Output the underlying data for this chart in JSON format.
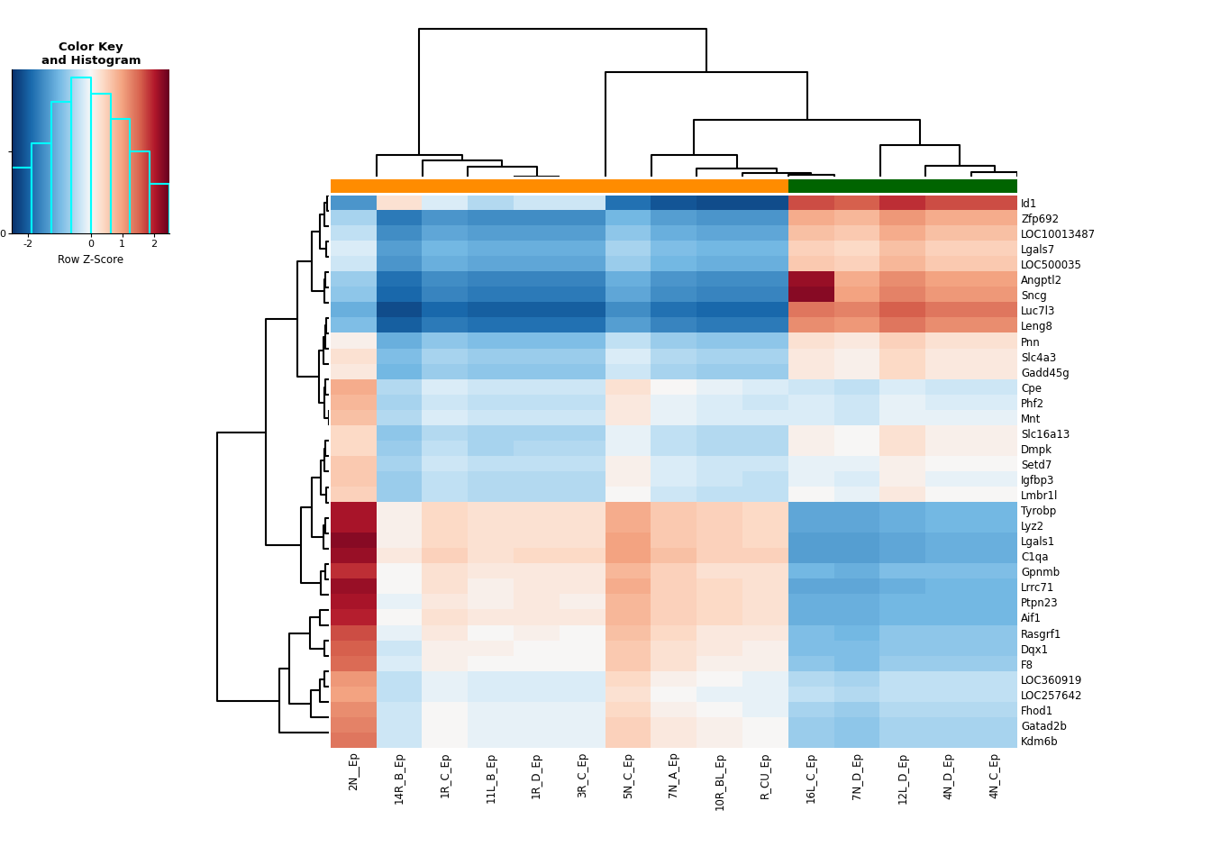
{
  "col_labels_ordered": [
    "2N__Ep",
    "5N_C_Ep",
    "7N_A_Ep",
    "10R_BL_Ep",
    "R_CU_Ep",
    "14R_B_Ep",
    "11L_B_Ep",
    "1R_C_Ep",
    "1R_D_Ep",
    "3R_C_Ep",
    "12L_D_Ep",
    "16L_C_Ep",
    "4N_D_Ep",
    "7N_D_Ep",
    "4N_C_Ep"
  ],
  "row_labels_ordered": [
    "Ptpn23",
    "Dqx1",
    "Lrrc71",
    "Gatad2b",
    "Rasgrf1",
    "Lgals1",
    "Cpe",
    "Igfbp3",
    "C1qa",
    "Tyrobp",
    "Aif1",
    "Gpnmb",
    "Phf2",
    "Mnt",
    "F8",
    "Slc16a13",
    "LOC360919",
    "LOC257642",
    "Kdm6b",
    "Lmbr1l",
    "Fhod1",
    "Setd7",
    "Slc4a3",
    "Dmpk",
    "Lyz2",
    "LOC10013487",
    "Angptl2",
    "Sncg",
    "Pnn",
    "Luc7l3",
    "Leng8",
    "Zfp692",
    "Id1",
    "Lgals7",
    "Gadd45g",
    "LOC500035"
  ],
  "col_group_colors": [
    "#FF8C00",
    "#FF8C00",
    "#FF8C00",
    "#FF8C00",
    "#FF8C00",
    "#FF8C00",
    "#FF8C00",
    "#FF8C00",
    "#FF8C00",
    "#FF8C00",
    "#006400",
    "#006400",
    "#006400",
    "#006400",
    "#006400"
  ],
  "vmin": -2.5,
  "vmax": 2.5,
  "heatmap_data": [
    [
      2.1,
      0.8,
      0.5,
      0.4,
      0.3,
      -0.1,
      0.1,
      0.2,
      0.2,
      0.1,
      -1.0,
      -1.1,
      -1.0,
      -1.1,
      -1.0
    ],
    [
      1.6,
      0.6,
      0.3,
      0.2,
      0.1,
      -0.3,
      0.1,
      0.1,
      0.0,
      0.0,
      -0.8,
      -0.9,
      -0.8,
      -0.9,
      -0.8
    ],
    [
      2.2,
      0.9,
      0.5,
      0.4,
      0.3,
      0.0,
      0.1,
      0.3,
      0.2,
      0.2,
      -1.1,
      -1.2,
      -1.0,
      -1.2,
      -1.0
    ],
    [
      1.3,
      0.5,
      0.2,
      0.1,
      0.0,
      -0.3,
      -0.1,
      0.0,
      -0.1,
      -0.1,
      -0.6,
      -0.7,
      -0.6,
      -0.8,
      -0.6
    ],
    [
      1.7,
      0.7,
      0.4,
      0.2,
      0.2,
      -0.1,
      0.0,
      0.2,
      0.1,
      0.0,
      -0.8,
      -0.9,
      -0.8,
      -1.0,
      -0.8
    ],
    [
      2.3,
      1.0,
      0.6,
      0.5,
      0.4,
      0.1,
      0.3,
      0.4,
      0.3,
      0.3,
      -1.2,
      -1.3,
      -1.1,
      -1.3,
      -1.1
    ],
    [
      0.9,
      0.3,
      0.0,
      -0.1,
      -0.2,
      -0.5,
      -0.3,
      -0.2,
      -0.3,
      -0.3,
      -0.2,
      -0.3,
      -0.3,
      -0.4,
      -0.3
    ],
    [
      0.6,
      0.1,
      -0.2,
      -0.3,
      -0.4,
      -0.7,
      -0.5,
      -0.4,
      -0.5,
      -0.5,
      0.1,
      -0.1,
      -0.1,
      -0.2,
      -0.1
    ],
    [
      2.2,
      1.0,
      0.7,
      0.5,
      0.5,
      0.2,
      0.3,
      0.5,
      0.4,
      0.4,
      -1.2,
      -1.3,
      -1.1,
      -1.3,
      -1.1
    ],
    [
      2.1,
      0.9,
      0.6,
      0.5,
      0.4,
      0.1,
      0.3,
      0.4,
      0.3,
      0.3,
      -1.1,
      -1.2,
      -1.0,
      -1.2,
      -1.0
    ],
    [
      2.0,
      0.8,
      0.5,
      0.4,
      0.3,
      0.0,
      0.2,
      0.3,
      0.2,
      0.2,
      -1.0,
      -1.1,
      -1.0,
      -1.1,
      -1.0
    ],
    [
      1.9,
      0.8,
      0.5,
      0.3,
      0.3,
      0.0,
      0.2,
      0.3,
      0.2,
      0.2,
      -0.9,
      -1.0,
      -0.9,
      -1.1,
      -0.9
    ],
    [
      0.8,
      0.2,
      -0.1,
      -0.2,
      -0.3,
      -0.6,
      -0.4,
      -0.3,
      -0.4,
      -0.4,
      -0.1,
      -0.2,
      -0.2,
      -0.3,
      -0.2
    ],
    [
      0.7,
      0.2,
      -0.1,
      -0.2,
      -0.2,
      -0.5,
      -0.3,
      -0.2,
      -0.3,
      -0.3,
      -0.1,
      -0.2,
      -0.1,
      -0.3,
      -0.1
    ],
    [
      1.5,
      0.6,
      0.3,
      0.1,
      0.1,
      -0.2,
      0.0,
      0.1,
      0.0,
      0.0,
      -0.7,
      -0.8,
      -0.7,
      -0.9,
      -0.7
    ],
    [
      0.4,
      -0.1,
      -0.4,
      -0.5,
      -0.5,
      -0.8,
      -0.6,
      -0.5,
      -0.6,
      -0.6,
      0.3,
      0.1,
      0.1,
      0.0,
      0.1
    ],
    [
      1.1,
      0.4,
      0.1,
      0.0,
      -0.1,
      -0.4,
      -0.2,
      -0.1,
      -0.2,
      -0.2,
      -0.4,
      -0.5,
      -0.4,
      -0.6,
      -0.4
    ],
    [
      1.0,
      0.3,
      0.0,
      -0.1,
      -0.1,
      -0.4,
      -0.2,
      -0.1,
      -0.2,
      -0.2,
      -0.4,
      -0.4,
      -0.4,
      -0.5,
      -0.4
    ],
    [
      1.4,
      0.5,
      0.2,
      0.1,
      0.0,
      -0.3,
      -0.1,
      0.0,
      -0.1,
      -0.1,
      -0.6,
      -0.7,
      -0.6,
      -0.8,
      -0.6
    ],
    [
      0.5,
      0.0,
      -0.3,
      -0.4,
      -0.4,
      -0.7,
      -0.5,
      -0.4,
      -0.5,
      -0.5,
      0.2,
      0.0,
      0.0,
      -0.1,
      0.0
    ],
    [
      1.2,
      0.4,
      0.1,
      0.0,
      -0.1,
      -0.3,
      -0.1,
      0.0,
      -0.1,
      -0.1,
      -0.5,
      -0.6,
      -0.5,
      -0.7,
      -0.5
    ],
    [
      0.6,
      0.1,
      -0.2,
      -0.3,
      -0.3,
      -0.6,
      -0.4,
      -0.3,
      -0.4,
      -0.4,
      0.1,
      -0.1,
      0.0,
      -0.1,
      0.0
    ],
    [
      0.3,
      -0.2,
      -0.5,
      -0.6,
      -0.6,
      -0.9,
      -0.7,
      -0.6,
      -0.7,
      -0.7,
      0.4,
      0.2,
      0.2,
      0.1,
      0.2
    ],
    [
      0.4,
      -0.1,
      -0.4,
      -0.5,
      -0.5,
      -0.7,
      -0.6,
      -0.4,
      -0.5,
      -0.5,
      0.3,
      0.1,
      0.1,
      0.0,
      0.1
    ],
    [
      2.1,
      0.9,
      0.6,
      0.5,
      0.4,
      0.1,
      0.3,
      0.4,
      0.3,
      0.3,
      -1.1,
      -1.2,
      -1.0,
      -1.2,
      -1.0
    ],
    [
      -0.4,
      -0.8,
      -1.1,
      -1.2,
      -1.2,
      -1.5,
      -1.3,
      -1.2,
      -1.3,
      -1.3,
      0.9,
      0.7,
      0.7,
      0.6,
      0.7
    ],
    [
      -0.7,
      -1.1,
      -1.4,
      -1.5,
      -1.5,
      -1.8,
      -1.6,
      -1.5,
      -1.6,
      -1.6,
      1.2,
      2.2,
      1.0,
      0.9,
      1.0
    ],
    [
      -0.8,
      -1.2,
      -1.5,
      -1.6,
      -1.6,
      -1.9,
      -1.7,
      -1.6,
      -1.7,
      -1.7,
      1.3,
      2.3,
      1.1,
      1.0,
      1.1
    ],
    [
      0.1,
      -0.4,
      -0.7,
      -0.8,
      -0.8,
      -1.1,
      -0.9,
      -0.8,
      -0.9,
      -0.9,
      0.5,
      0.3,
      0.3,
      0.2,
      0.3
    ],
    [
      -1.1,
      -1.5,
      -1.8,
      -1.9,
      -1.9,
      -2.2,
      -2.0,
      -1.9,
      -2.0,
      -2.0,
      1.6,
      1.4,
      1.4,
      1.3,
      1.4
    ],
    [
      -0.9,
      -1.3,
      -1.6,
      -1.7,
      -1.7,
      -2.0,
      -1.8,
      -1.7,
      -1.8,
      -1.8,
      1.4,
      1.2,
      1.2,
      1.1,
      1.2
    ],
    [
      -0.6,
      -1.0,
      -1.3,
      -1.4,
      -1.4,
      -1.7,
      -1.5,
      -1.4,
      -1.5,
      -1.5,
      1.1,
      0.9,
      0.9,
      0.8,
      0.9
    ],
    [
      -1.4,
      -1.8,
      -2.1,
      -2.2,
      -2.2,
      0.3,
      -0.5,
      -0.2,
      -0.3,
      -0.3,
      1.9,
      1.7,
      1.7,
      1.6,
      1.7
    ],
    [
      -0.2,
      -0.6,
      -0.9,
      -1.0,
      -1.0,
      -1.3,
      -1.1,
      -1.0,
      -1.1,
      -1.1,
      0.7,
      0.5,
      0.5,
      0.4,
      0.5
    ],
    [
      0.2,
      -0.3,
      -0.6,
      -0.7,
      -0.7,
      -1.0,
      -0.8,
      -0.7,
      -0.8,
      -0.8,
      0.4,
      0.2,
      0.2,
      0.1,
      0.2
    ],
    [
      -0.3,
      -0.7,
      -1.0,
      -1.1,
      -1.1,
      -1.4,
      -1.2,
      -1.1,
      -1.2,
      -1.2,
      0.8,
      0.6,
      0.6,
      0.5,
      0.6
    ]
  ]
}
